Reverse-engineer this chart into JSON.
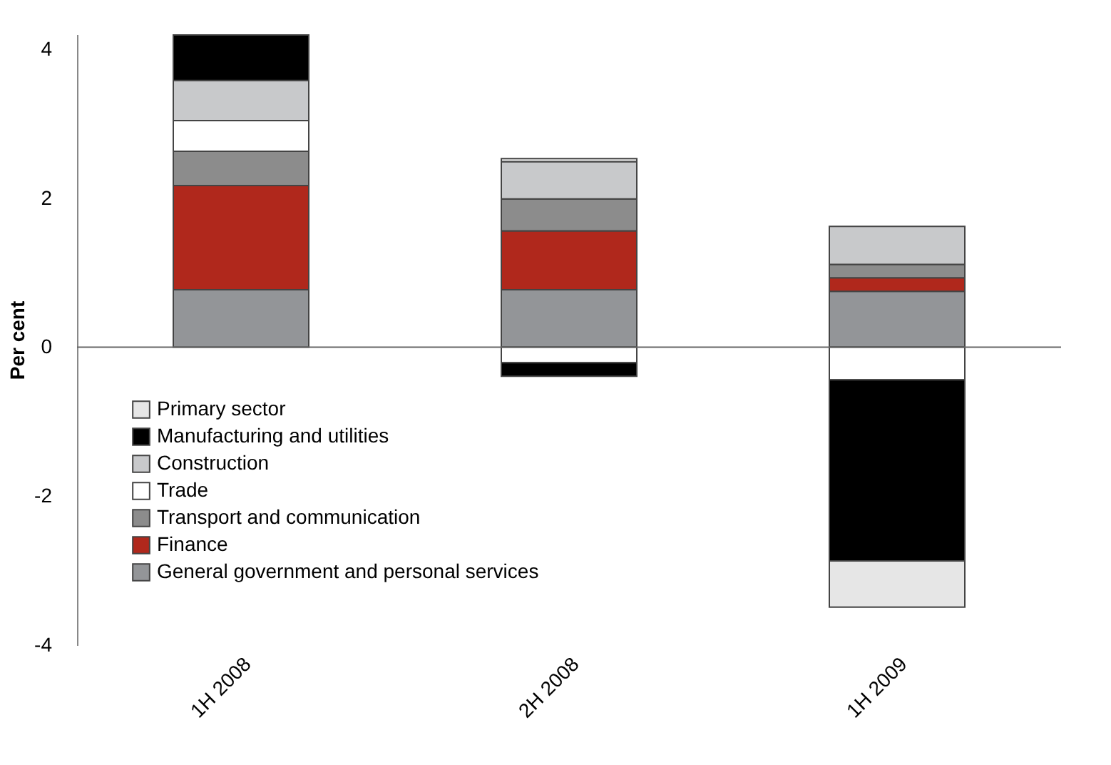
{
  "chart_data": {
    "type": "bar",
    "stacked": true,
    "ylabel": "Per cent",
    "categories": [
      "1H 2008",
      "2H 2008",
      "1H 2009"
    ],
    "series": [
      {
        "name": "General government and personal services",
        "color": "#939598",
        "values": [
          0.77,
          0.77,
          0.75
        ]
      },
      {
        "name": "Finance",
        "color": "#b0281c",
        "values": [
          1.4,
          0.79,
          0.18
        ]
      },
      {
        "name": "Transport and communication",
        "color": "#8c8c8c",
        "values": [
          0.46,
          0.43,
          0.18
        ]
      },
      {
        "name": "Trade",
        "color": "#ffffff",
        "values": [
          0.41,
          -0.21,
          -0.44
        ]
      },
      {
        "name": "Construction",
        "color": "#c8c9cb",
        "values": [
          0.54,
          0.5,
          0.51
        ]
      },
      {
        "name": "Manufacturing and utilities",
        "color": "#000000",
        "values": [
          0.61,
          -0.18,
          -2.43
        ]
      },
      {
        "name": "Primary sector",
        "color": "#e6e6e6",
        "values": [
          null,
          0.04,
          -0.62
        ]
      }
    ],
    "ylim": [
      -4,
      4.2
    ],
    "yticks": [
      -4,
      -2,
      0,
      2,
      4
    ],
    "legend": "bottom left"
  }
}
